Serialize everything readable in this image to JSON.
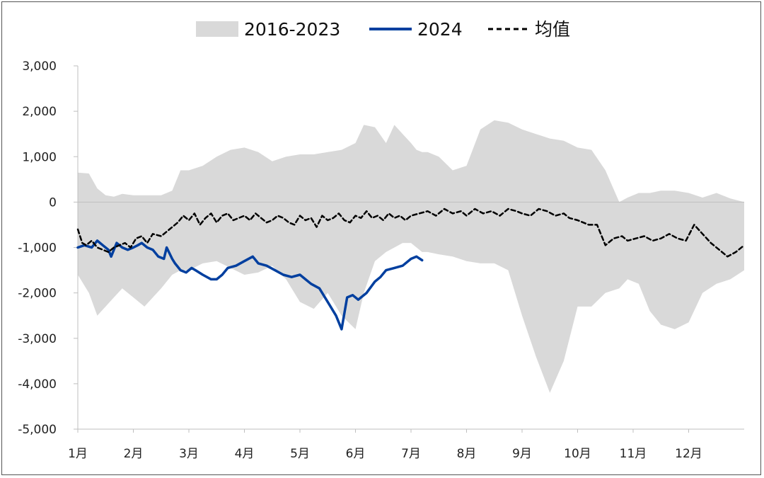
{
  "chart_data": {
    "type": "area",
    "title": "",
    "xlabel": "",
    "ylabel": "",
    "ylim": [
      -5000,
      3000
    ],
    "yticks": [
      3000,
      2000,
      1000,
      0,
      -1000,
      -2000,
      -3000,
      -4000,
      -5000
    ],
    "ytick_labels": [
      "3,000",
      "2,000",
      "1,000",
      "0",
      "-1,000",
      "-2,000",
      "-3,000",
      "-4,000",
      "-5,000"
    ],
    "x_domain": [
      0,
      12
    ],
    "xticks": [
      0,
      1,
      2,
      3,
      4,
      5,
      6,
      7,
      8,
      9,
      10,
      11
    ],
    "xtick_labels": [
      "1月",
      "2月",
      "3月",
      "4月",
      "5月",
      "6月",
      "7月",
      "8月",
      "9月",
      "10月",
      "11月",
      "12月"
    ],
    "x_unit_note": "x values are month positions (0 = start of 1月)",
    "grid": false,
    "legend_position": "top",
    "legend": [
      {
        "label": "2016-2023",
        "style": "band",
        "color": "#d9d9d9"
      },
      {
        "label": "2024",
        "style": "solid",
        "color": "#003f9f"
      },
      {
        "label": "均值",
        "style": "dashed",
        "color": "#000000"
      }
    ],
    "band": {
      "name": "2016-2023",
      "color": "#d9d9d9",
      "x": [
        0.0,
        0.2,
        0.35,
        0.5,
        0.65,
        0.8,
        1.0,
        1.2,
        1.5,
        1.7,
        1.85,
        2.0,
        2.25,
        2.5,
        2.75,
        3.0,
        3.25,
        3.5,
        3.75,
        4.0,
        4.25,
        4.5,
        4.75,
        5.0,
        5.15,
        5.35,
        5.55,
        5.7,
        5.85,
        6.0,
        6.1,
        6.2,
        6.3,
        6.5,
        6.75,
        7.0,
        7.25,
        7.5,
        7.75,
        8.0,
        8.25,
        8.5,
        8.75,
        9.0,
        9.25,
        9.5,
        9.75,
        9.9,
        10.1,
        10.3,
        10.5,
        10.75,
        11.0,
        11.25,
        11.5,
        11.75,
        12.0
      ],
      "upper": [
        650,
        630,
        300,
        150,
        120,
        180,
        150,
        150,
        150,
        250,
        700,
        700,
        800,
        1000,
        1150,
        1200,
        1100,
        900,
        1000,
        1050,
        1050,
        1100,
        1150,
        1300,
        1700,
        1650,
        1300,
        1700,
        1500,
        1300,
        1150,
        1100,
        1100,
        1000,
        700,
        800,
        1600,
        1800,
        1750,
        1600,
        1500,
        1400,
        1350,
        1200,
        1150,
        700,
        0,
        100,
        200,
        200,
        250,
        250,
        200,
        100,
        200,
        80,
        0
      ],
      "lower": [
        -1600,
        -2000,
        -2500,
        -2300,
        -2100,
        -1900,
        -2100,
        -2300,
        -1900,
        -1600,
        -1500,
        -1500,
        -1350,
        -1300,
        -1450,
        -1600,
        -1550,
        -1400,
        -1700,
        -2200,
        -2350,
        -2000,
        -2500,
        -2800,
        -2000,
        -1300,
        -1100,
        -1000,
        -900,
        -900,
        -1000,
        -1100,
        -1100,
        -1150,
        -1200,
        -1300,
        -1350,
        -1350,
        -1500,
        -2500,
        -3400,
        -4200,
        -3500,
        -2300,
        -2300,
        -2000,
        -1900,
        -1700,
        -1800,
        -2400,
        -2700,
        -2800,
        -2650,
        -2000,
        -1800,
        -1700,
        -1500
      ]
    },
    "series": [
      {
        "name": "2024",
        "color": "#003f9f",
        "style": "solid",
        "x": [
          0.0,
          0.12,
          0.25,
          0.35,
          0.45,
          0.55,
          0.6,
          0.7,
          0.8,
          0.9,
          1.0,
          1.08,
          1.15,
          1.25,
          1.35,
          1.45,
          1.55,
          1.6,
          1.7,
          1.75,
          1.85,
          1.95,
          2.05,
          2.12,
          2.25,
          2.4,
          2.5,
          2.6,
          2.7,
          2.85,
          3.0,
          3.15,
          3.25,
          3.4,
          3.55,
          3.7,
          3.85,
          4.0,
          4.1,
          4.2,
          4.35,
          4.5,
          4.65,
          4.75,
          4.85,
          4.95,
          5.05,
          5.2,
          5.35,
          5.45,
          5.55,
          5.7,
          5.85,
          6.0,
          6.1,
          6.2
        ],
        "y": [
          -1000,
          -950,
          -1000,
          -850,
          -950,
          -1050,
          -1200,
          -900,
          -1000,
          -1050,
          -1000,
          -950,
          -900,
          -1000,
          -1050,
          -1200,
          -1250,
          -1000,
          -1250,
          -1350,
          -1500,
          -1550,
          -1450,
          -1500,
          -1600,
          -1700,
          -1700,
          -1600,
          -1450,
          -1400,
          -1300,
          -1200,
          -1350,
          -1400,
          -1500,
          -1600,
          -1650,
          -1600,
          -1700,
          -1800,
          -1900,
          -2200,
          -2500,
          -2800,
          -2100,
          -2050,
          -2150,
          -2000,
          -1750,
          -1650,
          -1500,
          -1450,
          -1400,
          -1250,
          -1200,
          -1280
        ]
      },
      {
        "name": "均值",
        "color": "#000000",
        "style": "dashed",
        "x": [
          0.0,
          0.08,
          0.15,
          0.25,
          0.35,
          0.45,
          0.55,
          0.65,
          0.75,
          0.85,
          0.95,
          1.05,
          1.15,
          1.25,
          1.35,
          1.5,
          1.65,
          1.8,
          1.9,
          2.0,
          2.1,
          2.2,
          2.3,
          2.4,
          2.5,
          2.6,
          2.7,
          2.8,
          2.9,
          3.0,
          3.1,
          3.2,
          3.3,
          3.4,
          3.5,
          3.6,
          3.7,
          3.8,
          3.9,
          4.0,
          4.1,
          4.2,
          4.3,
          4.4,
          4.5,
          4.6,
          4.7,
          4.8,
          4.9,
          5.0,
          5.1,
          5.2,
          5.3,
          5.4,
          5.5,
          5.6,
          5.7,
          5.8,
          5.9,
          6.0,
          6.15,
          6.3,
          6.45,
          6.6,
          6.75,
          6.9,
          7.0,
          7.15,
          7.3,
          7.45,
          7.6,
          7.75,
          7.9,
          8.0,
          8.15,
          8.3,
          8.45,
          8.6,
          8.75,
          8.85,
          9.0,
          9.1,
          9.2,
          9.35,
          9.5,
          9.6,
          9.65,
          9.8,
          9.9,
          10.05,
          10.2,
          10.35,
          10.5,
          10.65,
          10.8,
          10.95,
          11.1,
          11.25,
          11.4,
          11.55,
          11.7,
          11.85,
          12.0
        ],
        "y": [
          -600,
          -900,
          -950,
          -850,
          -1000,
          -1050,
          -1100,
          -1000,
          -950,
          -900,
          -1000,
          -800,
          -750,
          -900,
          -700,
          -750,
          -600,
          -450,
          -300,
          -400,
          -250,
          -500,
          -350,
          -250,
          -450,
          -300,
          -250,
          -400,
          -350,
          -300,
          -400,
          -250,
          -350,
          -450,
          -400,
          -300,
          -350,
          -450,
          -500,
          -300,
          -400,
          -350,
          -550,
          -300,
          -400,
          -350,
          -250,
          -400,
          -450,
          -300,
          -350,
          -200,
          -350,
          -300,
          -400,
          -250,
          -350,
          -300,
          -400,
          -300,
          -250,
          -200,
          -300,
          -150,
          -250,
          -200,
          -300,
          -150,
          -250,
          -200,
          -300,
          -150,
          -200,
          -250,
          -300,
          -150,
          -200,
          -300,
          -250,
          -350,
          -400,
          -450,
          -500,
          -500,
          -950,
          -850,
          -800,
          -750,
          -850,
          -800,
          -750,
          -850,
          -800,
          -700,
          -800,
          -850,
          -500,
          -700,
          -900,
          -1050,
          -1200,
          -1100,
          -950
        ]
      }
    ]
  }
}
